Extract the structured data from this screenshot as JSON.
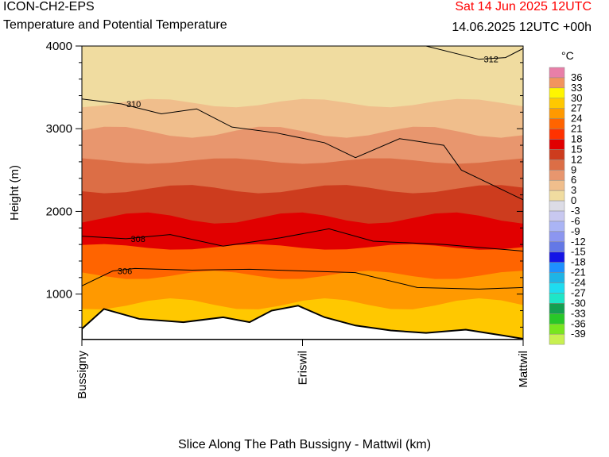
{
  "header": {
    "model": "ICON-CH2-EPS",
    "title": "Temperature and Potential Temperature",
    "valid_time": "Sat 14 Jun 2025 12UTC",
    "run_info": "14.06.2025 12UTC +00h"
  },
  "colors": {
    "valid_time_text": "#ff0000",
    "terrain": "#ffffff",
    "contour": "#000000"
  },
  "chart_data": {
    "type": "heatmap",
    "title": "Temperature and Potential Temperature",
    "xlabel": "Slice Along The Path Bussigny - Mattwil (km)",
    "ylabel": "Height (m)",
    "ylim": [
      450,
      4000
    ],
    "y_ticks": [
      "1000",
      "2000",
      "3000",
      "4000"
    ],
    "x_ticks": [
      "Bussigny",
      "Eriswil",
      "Mattwil"
    ],
    "legend_unit": "°C",
    "legend": {
      "levels": [
        "36",
        "33",
        "30",
        "27",
        "24",
        "21",
        "18",
        "15",
        "12",
        "9",
        "6",
        "3",
        "0",
        "-3",
        "-6",
        "-9",
        "-12",
        "-15",
        "-18",
        "-21",
        "-24",
        "-27",
        "-30",
        "-33",
        "-36",
        "-39"
      ],
      "colors": [
        "#e87fa8",
        "#f2945e",
        "#fff500",
        "#ffc800",
        "#ff9900",
        "#ff6400",
        "#ff3200",
        "#e10000",
        "#cd3c1e",
        "#dc6e46",
        "#e8966e",
        "#f0be8c",
        "#f0dca0",
        "#dcdce6",
        "#c8c8f0",
        "#aab4f5",
        "#8c96f0",
        "#6478e6",
        "#1414e6",
        "#1e90ff",
        "#1eb4e6",
        "#1edcf0",
        "#1ee6c8",
        "#14a050",
        "#28c828",
        "#78e61e",
        "#c8f050"
      ]
    },
    "temperature_bands": [
      {
        "lower_c": 3,
        "base_m": 3650,
        "color": "#f0dca0"
      },
      {
        "lower_c": 6,
        "base_m": 3310,
        "color": "#f0be8c"
      },
      {
        "lower_c": 9,
        "base_m": 2960,
        "color": "#e8966e"
      },
      {
        "lower_c": 12,
        "base_m": 2610,
        "color": "#dc6e46"
      },
      {
        "lower_c": 15,
        "base_m": 2270,
        "color": "#cd3c1e"
      },
      {
        "lower_c": 18,
        "base_m": 1920,
        "color": "#e10000"
      },
      {
        "lower_c": 21,
        "base_m": 1570,
        "color": "#ff6400"
      },
      {
        "lower_c": 24,
        "base_m": 1230,
        "color": "#ff9900"
      },
      {
        "lower_c": 27,
        "base_m": 880,
        "color": "#ffc800"
      },
      {
        "lower_c": 30,
        "base_m": 500,
        "color": "#ffdd22"
      }
    ],
    "terrain_m": [
      [
        0,
        580
      ],
      [
        0.05,
        820
      ],
      [
        0.13,
        700
      ],
      [
        0.23,
        660
      ],
      [
        0.32,
        720
      ],
      [
        0.38,
        660
      ],
      [
        0.43,
        800
      ],
      [
        0.49,
        860
      ],
      [
        0.55,
        720
      ],
      [
        0.62,
        620
      ],
      [
        0.7,
        560
      ],
      [
        0.78,
        530
      ],
      [
        0.87,
        570
      ],
      [
        0.93,
        520
      ],
      [
        1,
        460
      ]
    ],
    "theta_contours": [
      {
        "label": "312",
        "points": [
          [
            0.78,
            4000
          ],
          [
            0.9,
            3840
          ],
          [
            0.96,
            3860
          ],
          [
            1,
            3970
          ]
        ]
      },
      {
        "label": "310",
        "points": [
          [
            0,
            3360
          ],
          [
            0.09,
            3300
          ],
          [
            0.18,
            3180
          ],
          [
            0.26,
            3240
          ],
          [
            0.34,
            3020
          ],
          [
            0.44,
            2950
          ],
          [
            0.55,
            2830
          ],
          [
            0.62,
            2650
          ],
          [
            0.72,
            2880
          ],
          [
            0.82,
            2800
          ],
          [
            0.86,
            2500
          ],
          [
            1,
            2140
          ]
        ]
      },
      {
        "label": "308",
        "points": [
          [
            0,
            1700
          ],
          [
            0.1,
            1670
          ],
          [
            0.2,
            1720
          ],
          [
            0.32,
            1580
          ],
          [
            0.45,
            1680
          ],
          [
            0.56,
            1790
          ],
          [
            0.66,
            1640
          ],
          [
            0.82,
            1600
          ],
          [
            1,
            1520
          ]
        ]
      },
      {
        "label": "306",
        "points": [
          [
            0,
            1100
          ],
          [
            0.07,
            1280
          ],
          [
            0.12,
            1310
          ],
          [
            0.25,
            1290
          ],
          [
            0.38,
            1300
          ],
          [
            0.5,
            1280
          ],
          [
            0.62,
            1260
          ],
          [
            0.76,
            1080
          ],
          [
            0.9,
            1060
          ],
          [
            1,
            1080
          ]
        ]
      }
    ]
  }
}
